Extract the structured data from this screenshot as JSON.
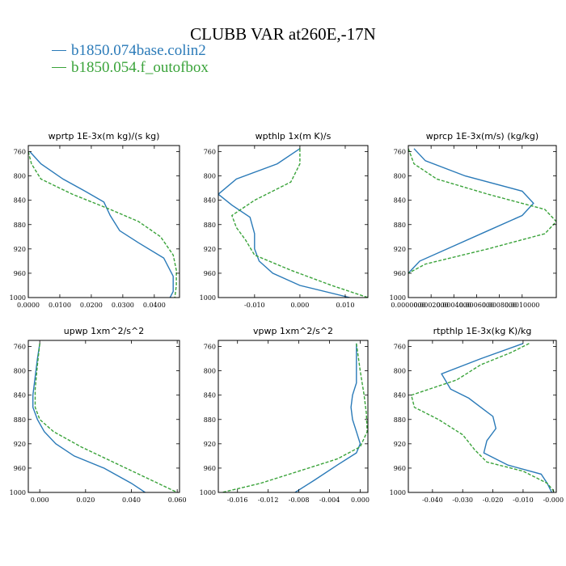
{
  "title": "CLUBB VAR at260E,-17N",
  "colors": {
    "blue": "#2a7ab8",
    "green": "#3aa33a"
  },
  "legend": [
    {
      "name": "b1850.074base.colin2",
      "color": "#2a7ab8",
      "dash": ""
    },
    {
      "name": "b1850.054.f_outofbox",
      "color": "#3aa33a",
      "dash": "4,2"
    }
  ],
  "chart_data": [
    {
      "type": "line",
      "title": "wprtp  1E-3x(m kg)/(s kg)",
      "xlim": [
        0,
        0.048
      ],
      "ylim": [
        1000,
        750
      ],
      "y_reversed": true,
      "xticks": [
        0,
        0.01,
        0.02,
        0.03,
        0.04
      ],
      "xtick_labels": [
        "0.0000",
        "0.0100",
        "0.0200",
        "0.0300",
        "0.0400"
      ],
      "yticks": [
        760,
        800,
        840,
        880,
        920,
        960,
        1000
      ],
      "series": [
        {
          "name": "b1850.074base.colin2",
          "x": [
            0.0005,
            0.004,
            0.011,
            0.018,
            0.024,
            0.026,
            0.029,
            0.035,
            0.043,
            0.046,
            0.046,
            0.045
          ],
          "y": [
            760,
            780,
            805,
            825,
            843,
            865,
            890,
            910,
            935,
            965,
            990,
            1000
          ]
        },
        {
          "name": "b1850.054.f_outofbox",
          "x": [
            0,
            0.001,
            0.004,
            0.014,
            0.026,
            0.035,
            0.042,
            0.046,
            0.047,
            0.047,
            0.0465
          ],
          "y": [
            760,
            780,
            805,
            830,
            855,
            875,
            900,
            930,
            955,
            980,
            1000
          ]
        }
      ]
    },
    {
      "type": "line",
      "title": "wpthlp  1x(m K)/s",
      "xlim": [
        -0.018,
        0.015
      ],
      "ylim": [
        1000,
        750
      ],
      "y_reversed": true,
      "xticks": [
        -0.01,
        0,
        0.01
      ],
      "xtick_labels": [
        "-0.010",
        "0.000",
        "0.010"
      ],
      "yticks": [
        760,
        800,
        840,
        880,
        920,
        960,
        1000
      ],
      "series": [
        {
          "name": "b1850.074base.colin2",
          "x": [
            0.0,
            -0.005,
            -0.014,
            -0.018,
            -0.015,
            -0.011,
            -0.01,
            -0.01,
            -0.009,
            -0.006,
            0.0,
            0.011
          ],
          "y": [
            755,
            780,
            805,
            830,
            848,
            868,
            895,
            920,
            940,
            960,
            980,
            1000
          ]
        },
        {
          "name": "b1850.054.f_outofbox",
          "x": [
            0.0,
            0.0,
            -0.002,
            -0.01,
            -0.015,
            -0.014,
            -0.012,
            -0.01,
            -0.002,
            0.007,
            0.015
          ],
          "y": [
            755,
            780,
            810,
            840,
            865,
            885,
            905,
            930,
            955,
            980,
            1000
          ]
        }
      ]
    },
    {
      "type": "line",
      "title": "wprcp  1E-3x(m/s) (kg/kg)",
      "xlim": [
        0,
        0.0013
      ],
      "ylim": [
        1000,
        750
      ],
      "y_reversed": true,
      "xticks": [
        0,
        0.0002,
        0.0004,
        0.0006,
        0.0008,
        0.001
      ],
      "xtick_labels": [
        "0.0000000",
        "0.0002000",
        "0.0004000",
        "0.0006000",
        "0.0008000",
        "0.0010000"
      ],
      "yticks": [
        760,
        800,
        840,
        880,
        920,
        960,
        1000
      ],
      "series": [
        {
          "name": "b1850.074base.colin2",
          "x": [
            5e-05,
            0.00015,
            0.0005,
            0.001,
            0.0011,
            0.001,
            0.0007,
            0.0004,
            0.0001,
            0.0
          ],
          "y": [
            755,
            775,
            800,
            825,
            845,
            865,
            890,
            915,
            940,
            960
          ]
        },
        {
          "name": "b1850.054.f_outofbox",
          "x": [
            0,
            5e-05,
            0.00025,
            0.0007,
            0.0012,
            0.0013,
            0.0012,
            0.0007,
            0.00015,
            0.0
          ],
          "y": [
            755,
            780,
            805,
            830,
            855,
            875,
            895,
            920,
            945,
            960
          ]
        }
      ]
    },
    {
      "type": "line",
      "title": "upwp  1xm^2/s^2",
      "xlim": [
        -0.005,
        0.061
      ],
      "ylim": [
        1000,
        750
      ],
      "y_reversed": true,
      "xticks": [
        0,
        0.02,
        0.04,
        0.06
      ],
      "xtick_labels": [
        "0.000",
        "0.020",
        "0.040",
        "0.060"
      ],
      "yticks": [
        760,
        800,
        840,
        880,
        920,
        960,
        1000
      ],
      "series": [
        {
          "name": "b1850.074base.colin2",
          "x": [
            0.0,
            -0.001,
            -0.002,
            -0.003,
            -0.003,
            -0.001,
            0.002,
            0.007,
            0.015,
            0.028,
            0.04,
            0.046
          ],
          "y": [
            755,
            780,
            810,
            840,
            860,
            880,
            900,
            920,
            940,
            960,
            985,
            1000
          ]
        },
        {
          "name": "b1850.054.f_outofbox",
          "x": [
            0.0,
            -0.001,
            -0.002,
            -0.002,
            0.0,
            0.006,
            0.018,
            0.032,
            0.046,
            0.06
          ],
          "y": [
            755,
            790,
            830,
            860,
            880,
            900,
            925,
            950,
            975,
            1000
          ]
        }
      ]
    },
    {
      "type": "line",
      "title": "vpwp  1xm^2/s^2",
      "xlim": [
        -0.0185,
        0.001
      ],
      "ylim": [
        1000,
        750
      ],
      "y_reversed": true,
      "xticks": [
        -0.016,
        -0.012,
        -0.008,
        -0.004,
        0
      ],
      "xtick_labels": [
        "-0.016",
        "-0.012",
        "-0.008",
        "-0.004",
        "0.000"
      ],
      "yticks": [
        760,
        800,
        840,
        880,
        920,
        960,
        1000
      ],
      "series": [
        {
          "name": "b1850.074base.colin2",
          "x": [
            -0.0005,
            -0.0005,
            -0.0005,
            -0.001,
            -0.0012,
            -0.001,
            -0.0005,
            0.0,
            -0.0005,
            -0.003,
            -0.006,
            -0.0085
          ],
          "y": [
            755,
            790,
            820,
            840,
            860,
            880,
            900,
            920,
            935,
            955,
            980,
            1000
          ]
        },
        {
          "name": "b1850.054.f_outofbox",
          "x": [
            -0.0005,
            0.0,
            0.0005,
            0.0008,
            0.0009,
            0.0,
            -0.003,
            -0.008,
            -0.013,
            -0.018
          ],
          "y": [
            755,
            800,
            840,
            870,
            900,
            925,
            945,
            965,
            985,
            1000
          ]
        }
      ]
    },
    {
      "type": "line",
      "title": "rtpthlp  1E-3x(kg K)/kg",
      "xlim": [
        -0.048,
        0.001
      ],
      "ylim": [
        1000,
        750
      ],
      "y_reversed": true,
      "xticks": [
        -0.04,
        -0.03,
        -0.02,
        -0.01,
        0
      ],
      "xtick_labels": [
        "-0.040",
        "-0.030",
        "-0.020",
        "-0.010",
        "-0.000"
      ],
      "yticks": [
        760,
        800,
        840,
        880,
        920,
        960,
        1000
      ],
      "series": [
        {
          "name": "b1850.074base.colin2",
          "x": [
            -0.01,
            -0.024,
            -0.037,
            -0.034,
            -0.028,
            -0.024,
            -0.02,
            -0.019,
            -0.022,
            -0.023,
            -0.015,
            -0.004,
            -0.002,
            -0.0005
          ],
          "y": [
            755,
            780,
            805,
            830,
            845,
            860,
            875,
            895,
            915,
            935,
            955,
            970,
            985,
            1000
          ]
        },
        {
          "name": "b1850.054.f_outofbox",
          "x": [
            -0.008,
            -0.014,
            -0.024,
            -0.032,
            -0.047,
            -0.046,
            -0.038,
            -0.03,
            -0.026,
            -0.022,
            -0.01,
            -0.002,
            0.0005
          ],
          "y": [
            755,
            770,
            790,
            815,
            840,
            860,
            880,
            905,
            930,
            950,
            965,
            985,
            1000
          ]
        }
      ]
    }
  ]
}
